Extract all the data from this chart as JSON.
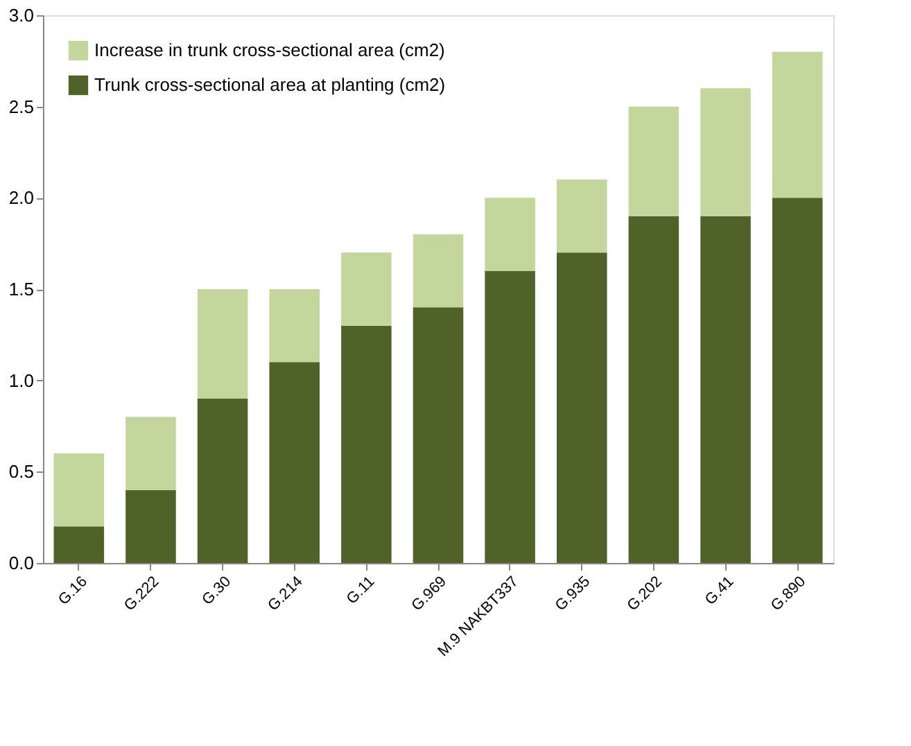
{
  "chart_data": {
    "type": "bar",
    "stacked": true,
    "categories": [
      "G.16",
      "G.222",
      "G.30",
      "G.214",
      "G.11",
      "G.969",
      "M.9 NAKBT337",
      "G.935",
      "G.202",
      "G.41",
      "G.890"
    ],
    "series": [
      {
        "name": "Trunk cross-sectional area at planting (cm2)",
        "color": "#4f6228",
        "values": [
          0.2,
          0.4,
          0.9,
          1.1,
          1.3,
          1.4,
          1.6,
          1.7,
          1.9,
          1.9,
          2.0
        ]
      },
      {
        "name": "Increase in trunk cross-sectional area (cm2)",
        "color": "#c3d69b",
        "values": [
          0.4,
          0.4,
          0.6,
          0.4,
          0.4,
          0.4,
          0.4,
          0.4,
          0.6,
          0.7,
          0.8
        ]
      }
    ],
    "ylim": [
      0,
      3
    ],
    "yticks": [
      {
        "value": 0,
        "label": "0.0"
      },
      {
        "value": 0.5,
        "label": "0.5"
      },
      {
        "value": 1,
        "label": "1.0"
      },
      {
        "value": 1.5,
        "label": "1.5"
      },
      {
        "value": 2,
        "label": "2.0"
      },
      {
        "value": 2.5,
        "label": "2.5"
      },
      {
        "value": 3,
        "label": "3.0"
      }
    ],
    "grid": false,
    "legend": "top left"
  }
}
